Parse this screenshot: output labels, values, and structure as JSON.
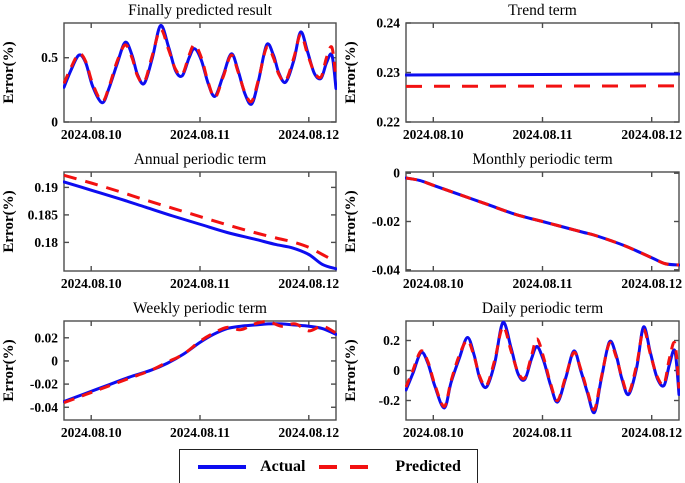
{
  "figure": {
    "x_tick_labels": [
      "2024.08.10",
      "2024.08.11",
      "2024.08.12"
    ],
    "x_tick_positions": [
      0.1,
      0.5,
      0.9
    ],
    "ylabel": "Error(%)",
    "colors": {
      "actual": "#0d0df0",
      "predicted": "#f21111",
      "axis": "#4c4c4c"
    }
  },
  "legend": {
    "items": [
      {
        "label": "Actual",
        "color": "#0d0df0",
        "dash": null
      },
      {
        "label": "Predicted",
        "color": "#f21111",
        "dash": "18 13"
      }
    ]
  },
  "chart_data": [
    {
      "type": "line",
      "id": "finally-predicted-result",
      "title": "Finally predicted result",
      "ylabel": "Error(%)",
      "x_tick_labels": [
        "2024.08.10",
        "2024.08.11",
        "2024.08.12"
      ],
      "x_tick_positions": [
        0.1,
        0.5,
        0.9
      ],
      "ylim": [
        0,
        0.77
      ],
      "y_tick_values": [
        0,
        0.5
      ],
      "y_tick_labels": [
        "0",
        "0.5"
      ],
      "x": [
        0,
        0.025,
        0.055,
        0.08,
        0.105,
        0.14,
        0.165,
        0.195,
        0.225,
        0.25,
        0.27,
        0.295,
        0.325,
        0.355,
        0.385,
        0.41,
        0.435,
        0.46,
        0.48,
        0.505,
        0.53,
        0.555,
        0.585,
        0.615,
        0.64,
        0.665,
        0.69,
        0.715,
        0.745,
        0.77,
        0.79,
        0.815,
        0.845,
        0.87,
        0.895,
        0.92,
        0.945,
        0.965,
        0.985,
        1
      ],
      "series": [
        {
          "name": "Actual",
          "dash": null,
          "y": [
            0.27,
            0.4,
            0.52,
            0.46,
            0.28,
            0.15,
            0.26,
            0.45,
            0.62,
            0.52,
            0.37,
            0.3,
            0.5,
            0.75,
            0.58,
            0.4,
            0.36,
            0.5,
            0.57,
            0.48,
            0.3,
            0.2,
            0.36,
            0.53,
            0.4,
            0.22,
            0.14,
            0.32,
            0.6,
            0.52,
            0.38,
            0.31,
            0.48,
            0.7,
            0.55,
            0.38,
            0.34,
            0.46,
            0.52,
            0.26
          ]
        },
        {
          "name": "Predicted",
          "dash": "10 8",
          "y": [
            0.3,
            0.42,
            0.53,
            0.47,
            0.3,
            0.16,
            0.27,
            0.47,
            0.6,
            0.5,
            0.36,
            0.31,
            0.52,
            0.72,
            0.56,
            0.41,
            0.37,
            0.52,
            0.6,
            0.5,
            0.31,
            0.19,
            0.35,
            0.52,
            0.39,
            0.23,
            0.16,
            0.33,
            0.58,
            0.5,
            0.37,
            0.32,
            0.5,
            0.68,
            0.53,
            0.39,
            0.35,
            0.5,
            0.58,
            0.33
          ]
        }
      ]
    },
    {
      "type": "line",
      "id": "trend-term",
      "title": "Trend term",
      "ylabel": "Error(%)",
      "x_tick_labels": [
        "2024.08.10",
        "2024.08.11",
        "2024.08.12"
      ],
      "x_tick_positions": [
        0.1,
        0.5,
        0.9
      ],
      "ylim": [
        0.22,
        0.24
      ],
      "y_tick_values": [
        0.22,
        0.23,
        0.24
      ],
      "y_tick_labels": [
        "0.22",
        "0.23",
        "0.24"
      ],
      "x": [
        0,
        1
      ],
      "series": [
        {
          "name": "Actual",
          "dash": null,
          "y": [
            0.2295,
            0.2297
          ]
        },
        {
          "name": "Predicted",
          "dash": "16 12",
          "y": [
            0.2272,
            0.2273
          ]
        }
      ]
    },
    {
      "type": "line",
      "id": "annual-periodic-term",
      "title": "Annual periodic term",
      "ylabel": "Error(%)",
      "x_tick_labels": [
        "2024.08.10",
        "2024.08.11",
        "2024.08.12"
      ],
      "x_tick_positions": [
        0.1,
        0.5,
        0.9
      ],
      "ylim": [
        0.1748,
        0.1928
      ],
      "y_tick_values": [
        0.18,
        0.185,
        0.19
      ],
      "y_tick_labels": [
        "0.18",
        "0.185",
        "0.19"
      ],
      "x": [
        0,
        0.1,
        0.2,
        0.3,
        0.4,
        0.5,
        0.6,
        0.7,
        0.78,
        0.84,
        0.9,
        0.95,
        1
      ],
      "series": [
        {
          "name": "Actual",
          "dash": null,
          "y": [
            0.191,
            0.1895,
            0.188,
            0.1864,
            0.1848,
            0.1833,
            0.1818,
            0.1806,
            0.1796,
            0.179,
            0.1778,
            0.176,
            0.1752
          ]
        },
        {
          "name": "Predicted",
          "dash": "13 9",
          "y": [
            0.1922,
            0.1908,
            0.1893,
            0.1877,
            0.1862,
            0.1847,
            0.1832,
            0.1818,
            0.1808,
            0.1801,
            0.1791,
            0.1778,
            0.1765
          ]
        }
      ]
    },
    {
      "type": "line",
      "id": "monthly-periodic-term",
      "title": "Monthly periodic term",
      "ylabel": "Error(%)",
      "x_tick_labels": [
        "2024.08.10",
        "2024.08.11",
        "2024.08.12"
      ],
      "x_tick_positions": [
        0.1,
        0.5,
        0.9
      ],
      "ylim": [
        -0.0405,
        0.0005
      ],
      "y_tick_values": [
        -0.04,
        -0.02,
        0
      ],
      "y_tick_labels": [
        "-0.04",
        "-0.02",
        "0"
      ],
      "x": [
        0,
        0.05,
        0.1,
        0.2,
        0.3,
        0.4,
        0.5,
        0.55,
        0.6,
        0.65,
        0.7,
        0.8,
        0.9,
        0.95,
        1
      ],
      "series": [
        {
          "name": "Actual",
          "dash": null,
          "y": [
            -0.002,
            -0.003,
            -0.005,
            -0.009,
            -0.013,
            -0.017,
            -0.02,
            -0.0215,
            -0.023,
            -0.0245,
            -0.026,
            -0.03,
            -0.035,
            -0.0375,
            -0.038
          ]
        },
        {
          "name": "Predicted",
          "dash": "11 8",
          "y": [
            -0.002,
            -0.003,
            -0.005,
            -0.009,
            -0.013,
            -0.017,
            -0.02,
            -0.0215,
            -0.023,
            -0.0245,
            -0.026,
            -0.03,
            -0.035,
            -0.0375,
            -0.038
          ]
        }
      ]
    },
    {
      "type": "line",
      "id": "weekly-periodic-term",
      "title": "Weekly periodic term",
      "ylabel": "Error(%)",
      "x_tick_labels": [
        "2024.08.10",
        "2024.08.11",
        "2024.08.12"
      ],
      "x_tick_positions": [
        0.1,
        0.5,
        0.9
      ],
      "ylim": [
        -0.051,
        0.0345
      ],
      "y_tick_values": [
        -0.04,
        -0.02,
        0,
        0.02
      ],
      "y_tick_labels": [
        "-0.04",
        "-0.02",
        "0",
        "0.02"
      ],
      "x": [
        0,
        0.08,
        0.16,
        0.24,
        0.32,
        0.38,
        0.44,
        0.5,
        0.55,
        0.6,
        0.65,
        0.7,
        0.75,
        0.8,
        0.85,
        0.9,
        0.95,
        1
      ],
      "series": [
        {
          "name": "Actual",
          "dash": null,
          "y": [
            -0.035,
            -0.028,
            -0.021,
            -0.014,
            -0.008,
            -0.002,
            0.006,
            0.016,
            0.023,
            0.028,
            0.03,
            0.031,
            0.032,
            0.032,
            0.031,
            0.03,
            0.028,
            0.023
          ]
        },
        {
          "name": "Predicted",
          "dash": "11 8",
          "y": [
            -0.036,
            -0.029,
            -0.022,
            -0.015,
            -0.008,
            -0.001,
            0.006,
            0.017,
            0.024,
            0.029,
            0.027,
            0.032,
            0.034,
            0.03,
            0.032,
            0.026,
            0.03,
            0.024
          ]
        }
      ]
    },
    {
      "type": "line",
      "id": "daily-periodic-term",
      "title": "Daily periodic term",
      "ylabel": "Error(%)",
      "x_tick_labels": [
        "2024.08.10",
        "2024.08.11",
        "2024.08.12"
      ],
      "x_tick_positions": [
        0.1,
        0.5,
        0.9
      ],
      "ylim": [
        -0.33,
        0.33
      ],
      "y_tick_values": [
        -0.2,
        0,
        0.2
      ],
      "y_tick_labels": [
        "-0.2",
        "0",
        "0.2"
      ],
      "x": [
        0,
        0.025,
        0.055,
        0.08,
        0.105,
        0.14,
        0.165,
        0.195,
        0.225,
        0.25,
        0.27,
        0.295,
        0.325,
        0.355,
        0.385,
        0.41,
        0.435,
        0.46,
        0.48,
        0.505,
        0.53,
        0.555,
        0.585,
        0.615,
        0.64,
        0.665,
        0.69,
        0.715,
        0.745,
        0.77,
        0.79,
        0.815,
        0.845,
        0.87,
        0.895,
        0.92,
        0.945,
        0.965,
        0.985,
        1
      ],
      "series": [
        {
          "name": "Actual",
          "dash": null,
          "y": [
            -0.13,
            -0.02,
            0.12,
            0.05,
            -0.1,
            -0.25,
            -0.08,
            0.08,
            0.22,
            0.1,
            -0.05,
            -0.11,
            0.05,
            0.32,
            0.15,
            -0.02,
            -0.06,
            0.08,
            0.16,
            0.06,
            -0.1,
            -0.21,
            -0.05,
            0.13,
            0.0,
            -0.15,
            -0.28,
            -0.06,
            0.19,
            0.1,
            -0.05,
            -0.16,
            0.02,
            0.29,
            0.12,
            -0.05,
            -0.1,
            0.04,
            0.13,
            -0.16
          ]
        },
        {
          "name": "Predicted",
          "dash": "9 7",
          "y": [
            -0.11,
            0.0,
            0.13,
            0.06,
            -0.09,
            -0.24,
            -0.07,
            0.1,
            0.2,
            0.09,
            -0.04,
            -0.1,
            0.07,
            0.29,
            0.13,
            -0.01,
            -0.05,
            0.1,
            0.21,
            0.08,
            -0.09,
            -0.2,
            -0.04,
            0.12,
            0.01,
            -0.14,
            -0.26,
            -0.05,
            0.18,
            0.09,
            -0.04,
            -0.15,
            0.04,
            0.27,
            0.11,
            -0.04,
            -0.09,
            0.08,
            0.18,
            -0.12
          ]
        }
      ]
    }
  ]
}
